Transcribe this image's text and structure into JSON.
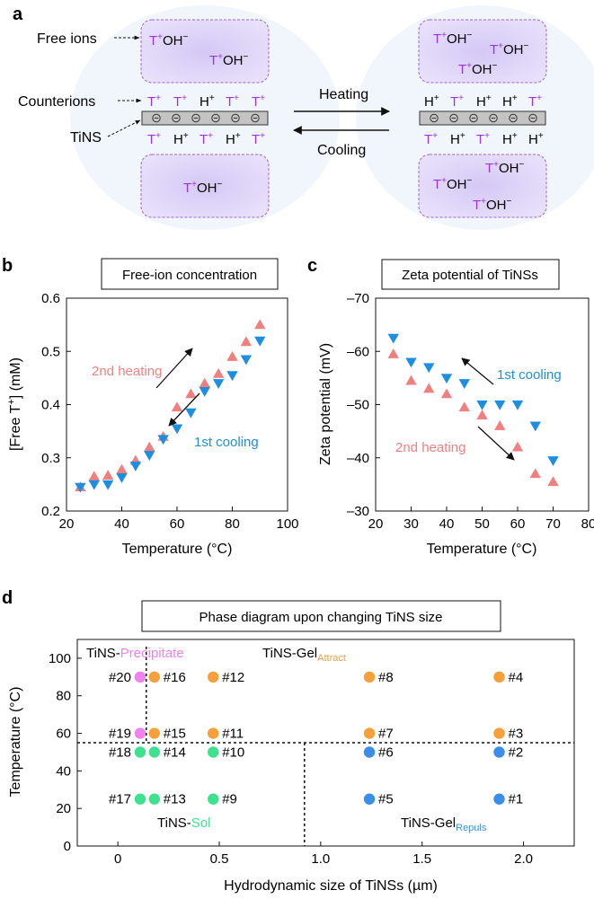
{
  "panel_labels": {
    "a": "a",
    "b": "b",
    "c": "c",
    "d": "d"
  },
  "panel_a": {
    "free_ions_label": "Free ions",
    "counterions_label": "Counterions",
    "tins_label": "TiNS",
    "heating_label": "Heating",
    "cooling_label": "Cooling",
    "t_ion": "T",
    "h_ion": "H",
    "plus": "+",
    "oh": "OH",
    "minus": "−",
    "neg_charge": "⊖",
    "left_top_row": [
      "T",
      "T",
      "H",
      "T",
      "T"
    ],
    "left_bottom_row": [
      "T",
      "H",
      "T",
      "H",
      "T"
    ],
    "right_top_row": [
      "H",
      "T",
      "H",
      "H",
      "T"
    ],
    "right_bottom_row": [
      "T",
      "H",
      "T",
      "H",
      "H"
    ]
  },
  "chart_data": [
    {
      "id": "b",
      "type": "scatter",
      "title": "Free-ion concentration",
      "xlabel": "Temperature (°C)",
      "ylabel": "[Free T⁺] (mM)",
      "ylabel_parts": {
        "pre": "[Free T",
        "sup": "+",
        "post": "] (mM)"
      },
      "xlim": [
        20,
        100
      ],
      "ylim": [
        0.2,
        0.6
      ],
      "xticks": [
        "20",
        "40",
        "60",
        "80",
        "100"
      ],
      "yticks": [
        "0.2",
        "0.3",
        "0.4",
        "0.5",
        "0.6"
      ],
      "series": [
        {
          "name": "2nd heating",
          "color": "#f08080",
          "marker": "triangle-up",
          "x": [
            25,
            30,
            35,
            40,
            45,
            50,
            55,
            60,
            65,
            70,
            75,
            80,
            85,
            90
          ],
          "y": [
            0.245,
            0.265,
            0.267,
            0.278,
            0.295,
            0.32,
            0.34,
            0.395,
            0.42,
            0.44,
            0.458,
            0.49,
            0.518,
            0.55
          ]
        },
        {
          "name": "1st cooling",
          "color": "#1e8ee0",
          "marker": "triangle-down",
          "x": [
            25,
            30,
            35,
            40,
            45,
            50,
            55,
            60,
            65,
            70,
            75,
            80,
            85,
            90
          ],
          "y": [
            0.245,
            0.25,
            0.25,
            0.263,
            0.285,
            0.305,
            0.335,
            0.355,
            0.385,
            0.425,
            0.44,
            0.455,
            0.485,
            0.52
          ]
        }
      ],
      "annotations": [
        "2nd heating",
        "1st cooling"
      ]
    },
    {
      "id": "c",
      "type": "scatter",
      "title": "Zeta potential of TiNSs",
      "xlabel": "Temperature (°C)",
      "ylabel": "Zeta potential (mV)",
      "xlim": [
        20,
        80
      ],
      "ylim": [
        -30,
        -70
      ],
      "xticks": [
        "20",
        "30",
        "40",
        "50",
        "60",
        "70",
        "80"
      ],
      "yticks": [
        "–30",
        "–40",
        "–50",
        "–60",
        "–70"
      ],
      "series": [
        {
          "name": "1st cooling",
          "color": "#1e8ee0",
          "marker": "triangle-down",
          "x": [
            25,
            30,
            35,
            40,
            45,
            50,
            55,
            60,
            65,
            70
          ],
          "y": [
            -62.5,
            -58,
            -57,
            -55,
            -54,
            -50,
            -50,
            -50,
            -46,
            -39.5
          ]
        },
        {
          "name": "2nd heating",
          "color": "#f08080",
          "marker": "triangle-up",
          "x": [
            25,
            30,
            35,
            40,
            45,
            50,
            55,
            60,
            65,
            70
          ],
          "y": [
            -59.5,
            -54.5,
            -53,
            -52,
            -49.5,
            -48,
            -46,
            -42,
            -37,
            -35.5
          ]
        }
      ],
      "annotations": [
        "1st cooling",
        "2nd heating"
      ]
    },
    {
      "id": "d",
      "type": "scatter",
      "title": "Phase diagram upon changing TiNS size",
      "xlabel": "Hydrodynamic size of TiNSs (µm)",
      "ylabel": "Temperature (°C)",
      "xlim": [
        -0.2,
        2.25
      ],
      "ylim": [
        0,
        110
      ],
      "xticks": [
        "0",
        "0.5",
        "1.0",
        "1.5",
        "2.0"
      ],
      "yticks": [
        "0",
        "20",
        "40",
        "60",
        "80",
        "100"
      ],
      "region_labels": {
        "precipitate": {
          "pre": "TiNS-",
          "main": "Precipitate"
        },
        "gel_attract": {
          "pre": "TiNS-Gel",
          "sub": "Attract"
        },
        "sol": {
          "pre": "TiNS-",
          "main": "Sol"
        },
        "gel_repuls": {
          "pre": "TiNS-Gel",
          "sub": "Repuls"
        }
      },
      "colors": {
        "precipitate": "#ee82ee",
        "gel_attract": "#f5a03a",
        "sol": "#3ee28e",
        "gel_repuls": "#3a8ee8"
      },
      "boundaries": {
        "temperature": 55,
        "size_small": 0.14,
        "size_large": 0.92
      },
      "points": [
        {
          "label": "#1",
          "x": 1.88,
          "y": 25,
          "phase": "gel_repuls"
        },
        {
          "label": "#2",
          "x": 1.88,
          "y": 50,
          "phase": "gel_repuls"
        },
        {
          "label": "#3",
          "x": 1.88,
          "y": 60,
          "phase": "gel_attract"
        },
        {
          "label": "#4",
          "x": 1.88,
          "y": 90,
          "phase": "gel_attract"
        },
        {
          "label": "#5",
          "x": 1.24,
          "y": 25,
          "phase": "gel_repuls"
        },
        {
          "label": "#6",
          "x": 1.24,
          "y": 50,
          "phase": "gel_repuls"
        },
        {
          "label": "#7",
          "x": 1.24,
          "y": 60,
          "phase": "gel_attract"
        },
        {
          "label": "#8",
          "x": 1.24,
          "y": 90,
          "phase": "gel_attract"
        },
        {
          "label": "#9",
          "x": 0.47,
          "y": 25,
          "phase": "sol"
        },
        {
          "label": "#10",
          "x": 0.47,
          "y": 50,
          "phase": "sol"
        },
        {
          "label": "#11",
          "x": 0.47,
          "y": 60,
          "phase": "gel_attract"
        },
        {
          "label": "#12",
          "x": 0.47,
          "y": 90,
          "phase": "gel_attract"
        },
        {
          "label": "#13",
          "x": 0.18,
          "y": 25,
          "phase": "sol"
        },
        {
          "label": "#14",
          "x": 0.18,
          "y": 50,
          "phase": "sol"
        },
        {
          "label": "#15",
          "x": 0.18,
          "y": 60,
          "phase": "gel_attract"
        },
        {
          "label": "#16",
          "x": 0.18,
          "y": 90,
          "phase": "gel_attract"
        },
        {
          "label": "#17",
          "x": 0.11,
          "y": 25,
          "phase": "sol"
        },
        {
          "label": "#18",
          "x": 0.11,
          "y": 50,
          "phase": "sol"
        },
        {
          "label": "#19",
          "x": 0.11,
          "y": 60,
          "phase": "precipitate"
        },
        {
          "label": "#20",
          "x": 0.11,
          "y": 90,
          "phase": "precipitate"
        }
      ]
    }
  ]
}
